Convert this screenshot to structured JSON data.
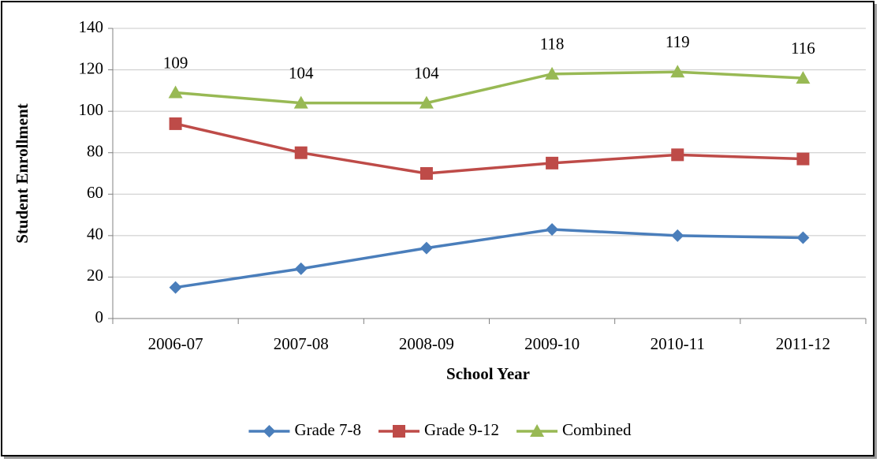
{
  "chart_data": {
    "type": "line",
    "x_label": "School Year",
    "y_label": "Student Enrollment",
    "categories": [
      "2006-07",
      "2007-08",
      "2008-09",
      "2009-10",
      "2010-11",
      "2011-12"
    ],
    "series": [
      {
        "name": "Grade 7-8",
        "color": "#4a7ebb",
        "marker": "diamond",
        "values": [
          15,
          24,
          34,
          43,
          40,
          39
        ]
      },
      {
        "name": "Grade 9-12",
        "color": "#be4b48",
        "marker": "square",
        "values": [
          94,
          80,
          70,
          75,
          79,
          77
        ]
      },
      {
        "name": "Combined",
        "color": "#98b954",
        "marker": "triangle",
        "show_labels": true,
        "values": [
          109,
          104,
          104,
          118,
          119,
          116
        ]
      }
    ],
    "ylim": [
      0,
      140
    ],
    "yticks": [
      0,
      20,
      40,
      60,
      80,
      100,
      120,
      140
    ],
    "grid": true,
    "legend": "bottom"
  }
}
